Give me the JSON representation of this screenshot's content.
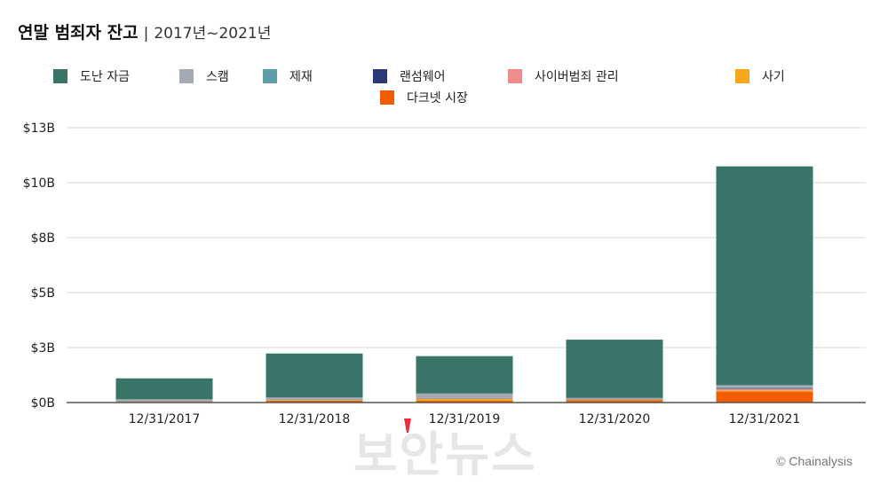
{
  "header": {
    "title": "연말 범죄자 잔고",
    "separator": "|",
    "subtitle": "2017년~2021년"
  },
  "legend": [
    {
      "label": "도난 자금",
      "color": "#387468"
    },
    {
      "label": "스캠",
      "color": "#A4A9B3"
    },
    {
      "label": "제재",
      "color": "#5E9EA8"
    },
    {
      "label": "랜섬웨어",
      "color": "#283A7A"
    },
    {
      "label": "사이버범죄 관리",
      "color": "#F08C8C"
    },
    {
      "label": "사기",
      "color": "#F6A71C"
    },
    {
      "label": "다크넷 시장",
      "color": "#F25C05"
    }
  ],
  "watermark": "보안뉴스",
  "source": "© Chainalysis",
  "chart_data": {
    "type": "bar",
    "stacked": true,
    "title": "연말 범죄자 잔고",
    "subtitle": "2017년~2021년",
    "categories": [
      "12/31/2017",
      "12/31/2018",
      "12/31/2019",
      "12/31/2020",
      "12/31/2021"
    ],
    "y_ticks": [
      {
        "value": 0,
        "label": "$0B"
      },
      {
        "value": 2.5,
        "label": "$3B"
      },
      {
        "value": 5,
        "label": "$5B"
      },
      {
        "value": 7.5,
        "label": "$8B"
      },
      {
        "value": 10,
        "label": "$10B"
      },
      {
        "value": 12.5,
        "label": "$13B"
      }
    ],
    "ylim": [
      0,
      12.5
    ],
    "grid": true,
    "legend_position": "top",
    "series": [
      {
        "name": "다크넷 시장",
        "color": "#F25C05",
        "values": [
          0.02,
          0.08,
          0.08,
          0.1,
          0.5
        ]
      },
      {
        "name": "사기",
        "color": "#F6A71C",
        "values": [
          0.02,
          0.03,
          0.08,
          0.03,
          0.05
        ]
      },
      {
        "name": "사이버범죄 관리",
        "color": "#F08C8C",
        "values": [
          0.01,
          0.01,
          0.02,
          0.02,
          0.07
        ]
      },
      {
        "name": "랜섬웨어",
        "color": "#283A7A",
        "values": [
          0.01,
          0.01,
          0.01,
          0.01,
          0.02
        ]
      },
      {
        "name": "제재",
        "color": "#5E9EA8",
        "values": [
          0.01,
          0.02,
          0.02,
          0.02,
          0.05
        ]
      },
      {
        "name": "스캠",
        "color": "#A4A9B3",
        "values": [
          0.08,
          0.08,
          0.2,
          0.03,
          0.1
        ]
      },
      {
        "name": "도난 자금",
        "color": "#387468",
        "values": [
          0.95,
          2.0,
          1.7,
          2.65,
          9.95
        ]
      }
    ]
  }
}
